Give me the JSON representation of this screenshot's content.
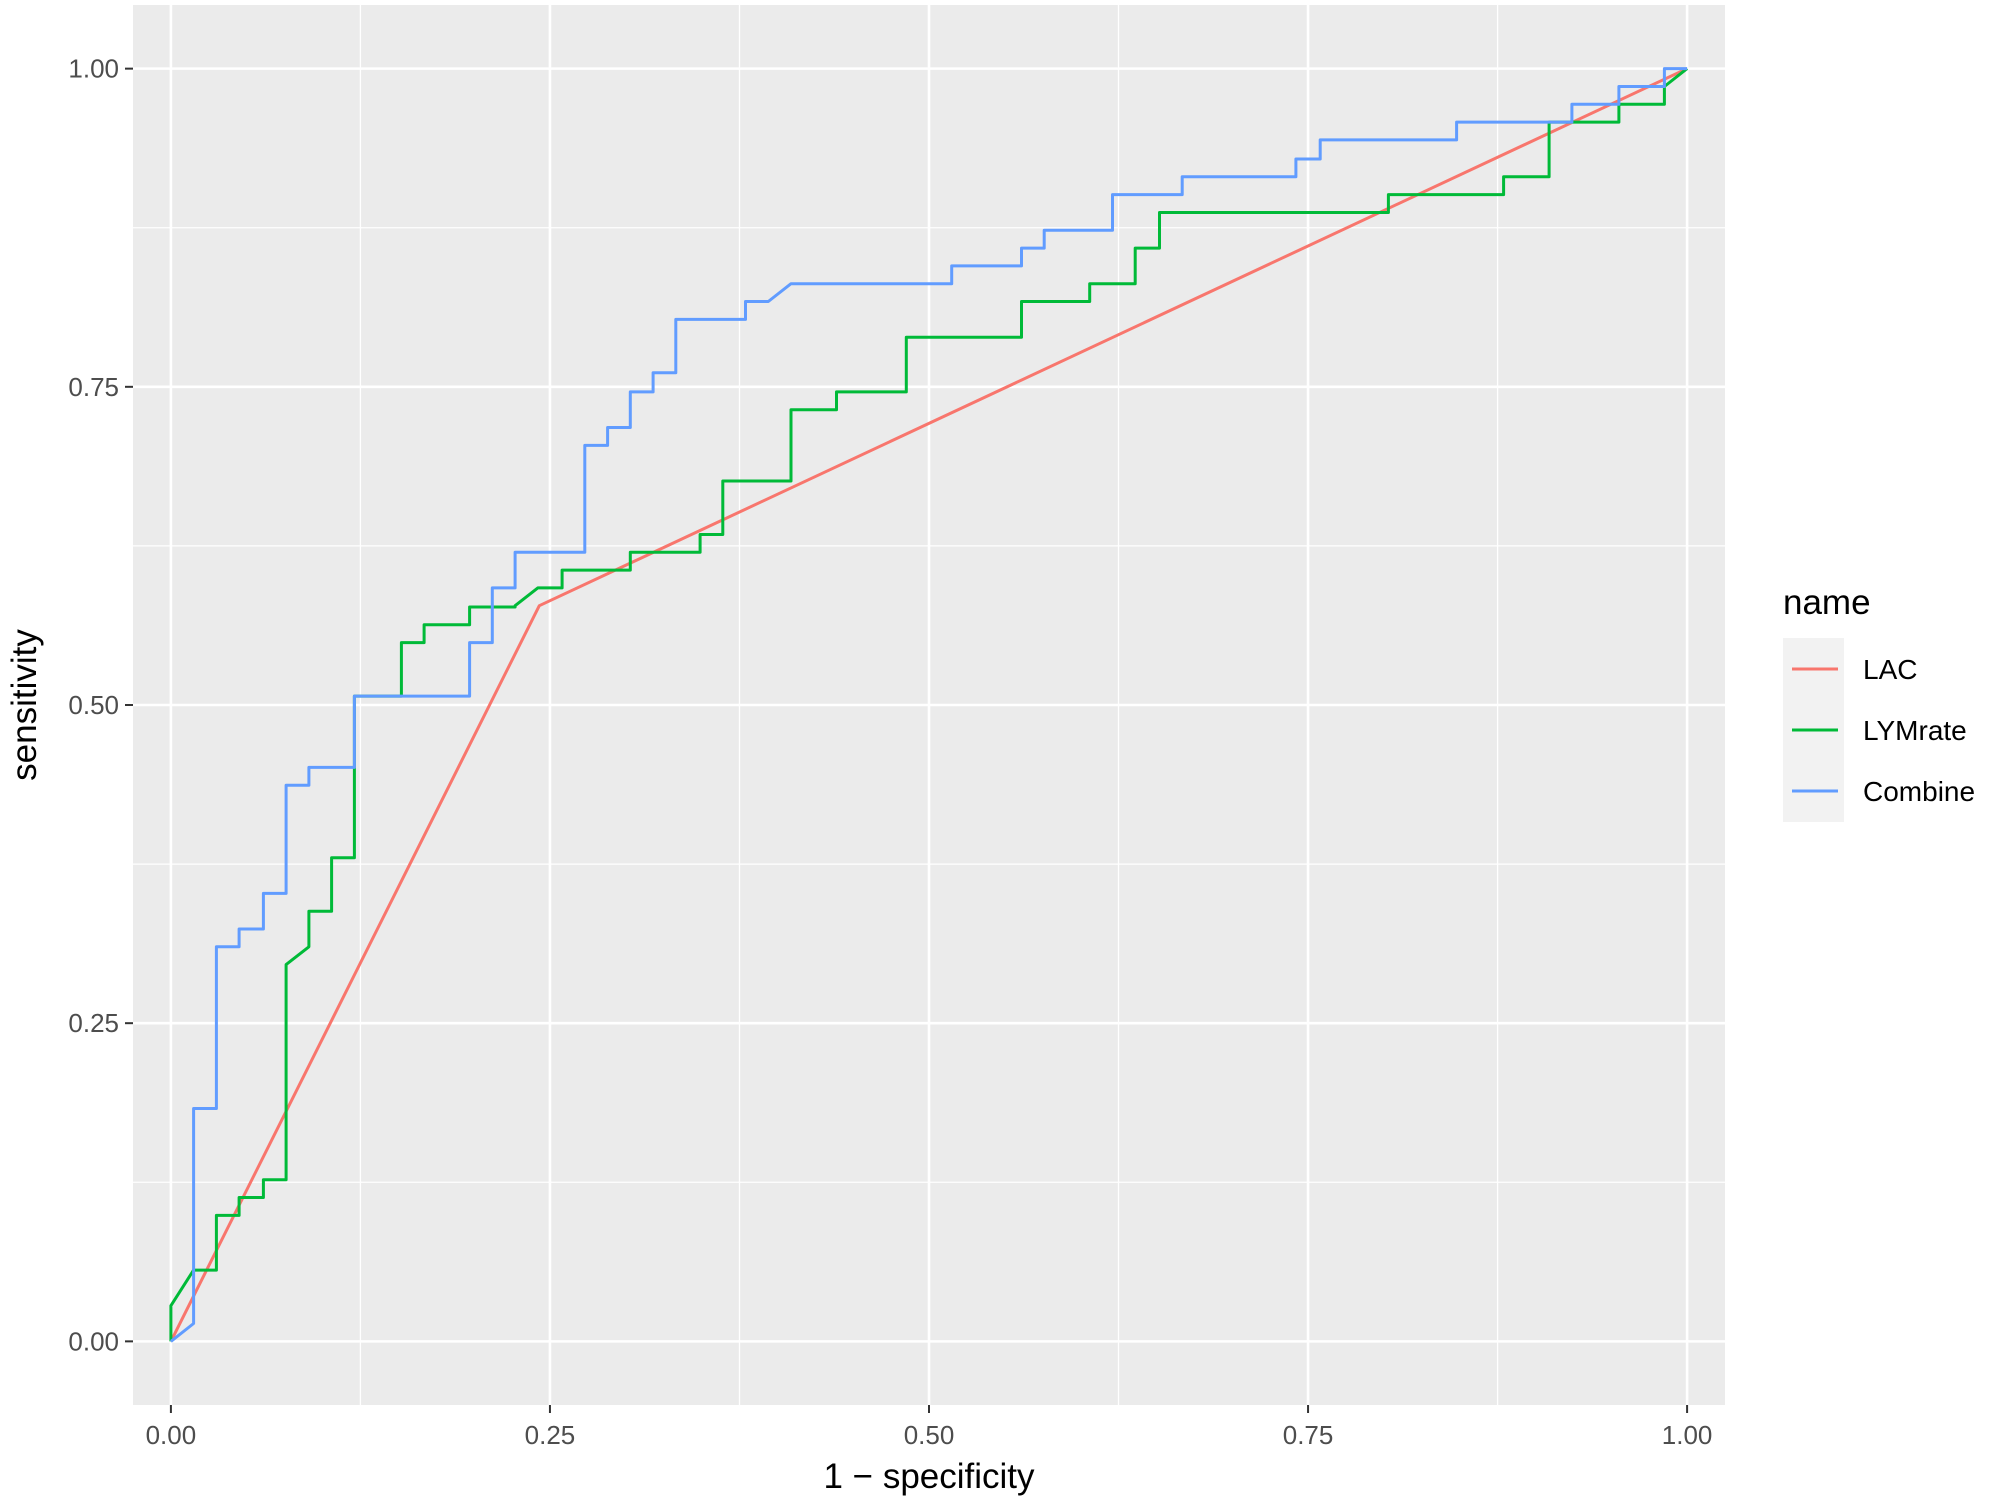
{
  "chart_data": {
    "type": "line",
    "xlabel": "1 − specificity",
    "ylabel": "sensitivity",
    "xlim": [
      -0.025,
      1.025
    ],
    "ylim": [
      -0.05,
      1.05
    ],
    "x_ticks": [
      "0.00",
      "0.25",
      "0.50",
      "0.75",
      "1.00"
    ],
    "y_ticks": [
      "0.00",
      "0.25",
      "0.50",
      "0.75",
      "1.00"
    ],
    "grid": true,
    "legend": {
      "title": "name",
      "position": "right"
    },
    "series": [
      {
        "name": "LAC",
        "color": "#F8766D",
        "points": [
          [
            0,
            0
          ],
          [
            0.243,
            0.578
          ],
          [
            1,
            1
          ]
        ]
      },
      {
        "name": "LYMrate",
        "color": "#00BA38",
        "points": [
          [
            0,
            0
          ],
          [
            0,
            0.028
          ],
          [
            0.015,
            0.056
          ],
          [
            0.03,
            0.056
          ],
          [
            0.03,
            0.099
          ],
          [
            0.045,
            0.099
          ],
          [
            0.045,
            0.113
          ],
          [
            0.061,
            0.113
          ],
          [
            0.061,
            0.127
          ],
          [
            0.076,
            0.127
          ],
          [
            0.076,
            0.296
          ],
          [
            0.091,
            0.31
          ],
          [
            0.091,
            0.338
          ],
          [
            0.106,
            0.338
          ],
          [
            0.106,
            0.38
          ],
          [
            0.121,
            0.38
          ],
          [
            0.121,
            0.507
          ],
          [
            0.152,
            0.507
          ],
          [
            0.152,
            0.549
          ],
          [
            0.167,
            0.549
          ],
          [
            0.167,
            0.563
          ],
          [
            0.197,
            0.563
          ],
          [
            0.197,
            0.577
          ],
          [
            0.227,
            0.577
          ],
          [
            0.227,
            0.578
          ],
          [
            0.242,
            0.592
          ],
          [
            0.258,
            0.592
          ],
          [
            0.258,
            0.606
          ],
          [
            0.303,
            0.606
          ],
          [
            0.303,
            0.62
          ],
          [
            0.349,
            0.62
          ],
          [
            0.349,
            0.634
          ],
          [
            0.364,
            0.634
          ],
          [
            0.364,
            0.676
          ],
          [
            0.409,
            0.676
          ],
          [
            0.409,
            0.732
          ],
          [
            0.439,
            0.732
          ],
          [
            0.439,
            0.746
          ],
          [
            0.485,
            0.746
          ],
          [
            0.485,
            0.789
          ],
          [
            0.561,
            0.789
          ],
          [
            0.561,
            0.817
          ],
          [
            0.606,
            0.817
          ],
          [
            0.606,
            0.831
          ],
          [
            0.636,
            0.831
          ],
          [
            0.636,
            0.859
          ],
          [
            0.652,
            0.859
          ],
          [
            0.652,
            0.887
          ],
          [
            0.803,
            0.887
          ],
          [
            0.803,
            0.901
          ],
          [
            0.879,
            0.901
          ],
          [
            0.879,
            0.915
          ],
          [
            0.909,
            0.915
          ],
          [
            0.909,
            0.958
          ],
          [
            0.955,
            0.958
          ],
          [
            0.955,
            0.972
          ],
          [
            0.985,
            0.972
          ],
          [
            0.985,
            0.986
          ],
          [
            1,
            1
          ]
        ]
      },
      {
        "name": "Combine",
        "color": "#619CFF",
        "points": [
          [
            0,
            0
          ],
          [
            0.015,
            0.014
          ],
          [
            0.015,
            0.183
          ],
          [
            0.03,
            0.183
          ],
          [
            0.03,
            0.31
          ],
          [
            0.045,
            0.31
          ],
          [
            0.045,
            0.324
          ],
          [
            0.061,
            0.324
          ],
          [
            0.061,
            0.352
          ],
          [
            0.076,
            0.352
          ],
          [
            0.076,
            0.437
          ],
          [
            0.091,
            0.437
          ],
          [
            0.091,
            0.451
          ],
          [
            0.121,
            0.451
          ],
          [
            0.121,
            0.507
          ],
          [
            0.197,
            0.507
          ],
          [
            0.197,
            0.549
          ],
          [
            0.212,
            0.549
          ],
          [
            0.212,
            0.592
          ],
          [
            0.227,
            0.592
          ],
          [
            0.227,
            0.62
          ],
          [
            0.273,
            0.62
          ],
          [
            0.273,
            0.704
          ],
          [
            0.288,
            0.704
          ],
          [
            0.288,
            0.718
          ],
          [
            0.303,
            0.718
          ],
          [
            0.303,
            0.746
          ],
          [
            0.318,
            0.746
          ],
          [
            0.318,
            0.761
          ],
          [
            0.333,
            0.761
          ],
          [
            0.333,
            0.803
          ],
          [
            0.379,
            0.803
          ],
          [
            0.379,
            0.817
          ],
          [
            0.394,
            0.817
          ],
          [
            0.409,
            0.831
          ],
          [
            0.515,
            0.831
          ],
          [
            0.515,
            0.845
          ],
          [
            0.561,
            0.845
          ],
          [
            0.561,
            0.859
          ],
          [
            0.576,
            0.859
          ],
          [
            0.576,
            0.873
          ],
          [
            0.621,
            0.873
          ],
          [
            0.621,
            0.901
          ],
          [
            0.667,
            0.901
          ],
          [
            0.667,
            0.915
          ],
          [
            0.742,
            0.915
          ],
          [
            0.742,
            0.929
          ],
          [
            0.758,
            0.929
          ],
          [
            0.758,
            0.944
          ],
          [
            0.848,
            0.944
          ],
          [
            0.848,
            0.958
          ],
          [
            0.924,
            0.958
          ],
          [
            0.924,
            0.972
          ],
          [
            0.955,
            0.972
          ],
          [
            0.955,
            0.986
          ],
          [
            0.985,
            0.986
          ],
          [
            0.985,
            1
          ],
          [
            1,
            1
          ]
        ]
      }
    ]
  }
}
